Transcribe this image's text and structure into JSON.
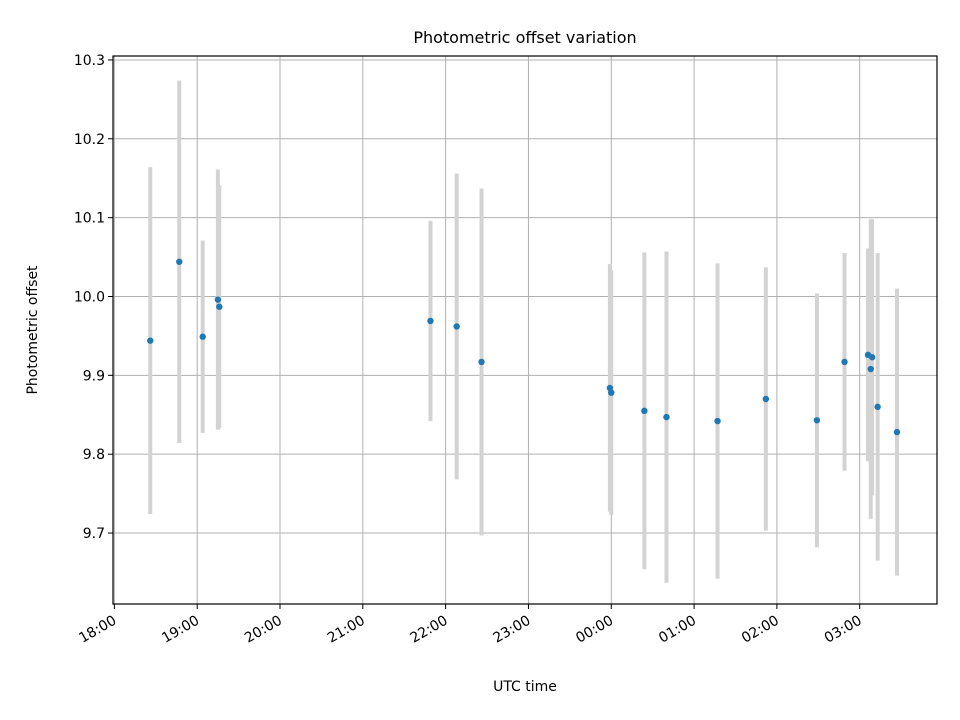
{
  "chart_data": {
    "type": "scatter",
    "title": "Photometric offset variation",
    "xlabel": "UTC time",
    "ylabel": "Photometric offset",
    "x_unit": "time (HH:MM, UTC)",
    "xlim": [
      "17:59",
      "03:56"
    ],
    "ylim": [
      9.61,
      10.305
    ],
    "grid": true,
    "x_ticks": [
      "18:00",
      "19:00",
      "20:00",
      "21:00",
      "22:00",
      "23:00",
      "00:00",
      "01:00",
      "02:00",
      "03:00"
    ],
    "y_ticks": [
      9.7,
      9.8,
      9.9,
      10.0,
      10.1,
      10.2,
      10.3
    ],
    "y_tick_labels": [
      "9.7",
      "9.8",
      "9.9",
      "10.0",
      "10.1",
      "10.2",
      "10.3"
    ],
    "colors": {
      "point": "#1f77b4",
      "errorbar": "#d3d3d3"
    },
    "points": [
      {
        "x": "18:26",
        "y": 9.944,
        "yerr": 0.22
      },
      {
        "x": "18:47",
        "y": 10.044,
        "yerr": 0.23
      },
      {
        "x": "19:04",
        "y": 9.949,
        "yerr": 0.122
      },
      {
        "x": "19:15",
        "y": 9.996,
        "yerr": 0.165
      },
      {
        "x": "19:16",
        "y": 9.987,
        "yerr": 0.154
      },
      {
        "x": "21:49",
        "y": 9.969,
        "yerr": 0.127
      },
      {
        "x": "22:08",
        "y": 9.962,
        "yerr": 0.194
      },
      {
        "x": "22:26",
        "y": 9.917,
        "yerr": 0.22
      },
      {
        "x": "23:59",
        "y": 9.884,
        "yerr": 0.157
      },
      {
        "x": "00:00",
        "y": 9.878,
        "yerr": 0.155
      },
      {
        "x": "00:24",
        "y": 9.855,
        "yerr": 0.201
      },
      {
        "x": "00:40",
        "y": 9.847,
        "yerr": 0.21
      },
      {
        "x": "01:17",
        "y": 9.842,
        "yerr": 0.2
      },
      {
        "x": "01:52",
        "y": 9.87,
        "yerr": 0.167
      },
      {
        "x": "02:29",
        "y": 9.843,
        "yerr": 0.161
      },
      {
        "x": "02:49",
        "y": 9.917,
        "yerr": 0.138
      },
      {
        "x": "03:06",
        "y": 9.926,
        "yerr": 0.135
      },
      {
        "x": "03:08",
        "y": 9.908,
        "yerr": 0.19
      },
      {
        "x": "03:09",
        "y": 9.923,
        "yerr": 0.175
      },
      {
        "x": "03:13",
        "y": 9.86,
        "yerr": 0.195
      },
      {
        "x": "03:27",
        "y": 9.828,
        "yerr": 0.182
      }
    ]
  }
}
